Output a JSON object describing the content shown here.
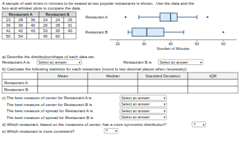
{
  "chart_data": {
    "type": "box",
    "orientation": "horizontal",
    "categories": [
      "Restaurant A",
      "Restaurant B"
    ],
    "boxes": [
      {
        "whislo": 28,
        "q1": 36,
        "median": 40,
        "q3": 42.5,
        "whishi": 50,
        "fliers": [
          23,
          54
        ]
      },
      {
        "whislo": 24,
        "q1": 25.5,
        "median": 31,
        "q3": 37.5,
        "whishi": 45,
        "fliers": [
          60
        ]
      }
    ],
    "xlabel": "Number of Minutes",
    "xlim": [
      17,
      65
    ],
    "xticks": [
      20,
      30,
      40,
      50,
      60
    ]
  },
  "worksheet": {
    "title_lines": [
      "A sample of wait times in minutes to be seated at two popular restaurants is shown.  Use the data and the",
      "box-and-whisker plots to compare the data."
    ],
    "table_headers": [
      "Restaurant A",
      "Restaurant B"
    ],
    "table_columns": [
      [
        [
          23,
          36,
          41,
          50
        ],
        [
          28,
          39,
          42,
          54
        ],
        [
          36,
          40,
          43
        ]
      ],
      [
        [
          24,
          26,
          33,
          45
        ],
        [
          24,
          28,
          35,
          60
        ],
        [
          25,
          31,
          40
        ]
      ]
    ],
    "section_a": "a) Describe the distribution/shape of each data set.",
    "row_prompts": [
      "Restaurant A is",
      "Restaurant B is"
    ],
    "section_b": "b) Calculate the following statistics for each restaurant (round to two decimal places when necessary):",
    "stat_headers": [
      "Mean",
      "Median",
      "Standard Deviation",
      "IQR"
    ],
    "stat_rows": [
      "Restaurant A",
      "Restaurant B"
    ],
    "section_c": [
      "c) The best measure of center for Restaurant A is",
      "    The best measure of center for Restaurant B is",
      "    The best measure of spread for Restaurant A is",
      "    The best measure of spread for Restaurant B is"
    ],
    "section_d": "d) Which restaurant, based on the measures of center, has a more symmetric distribution?",
    "section_e": "e) Which restaurant is more consistent?",
    "select_text": "Select an answer",
    "q_mark": "?",
    "dropdown_arrow": "▾"
  }
}
